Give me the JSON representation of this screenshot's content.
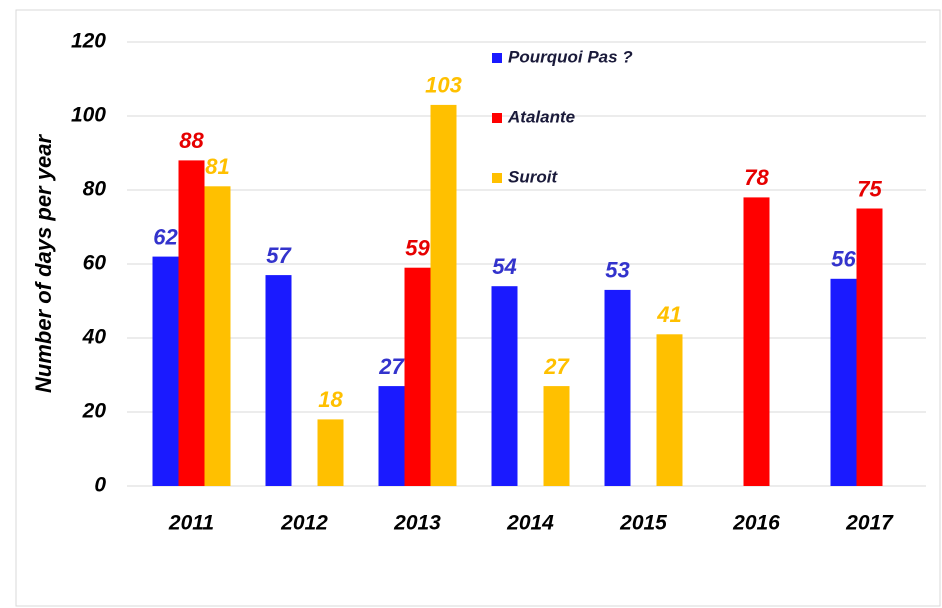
{
  "chart_data": {
    "type": "bar",
    "y_label": "Number of days per year",
    "categories": [
      "2011",
      "2012",
      "2013",
      "2014",
      "2015",
      "2016",
      "2017"
    ],
    "series": [
      {
        "name": "Pourquoi Pas ?",
        "color": "#1a1aff",
        "label_color": "#3333cc",
        "values": [
          62,
          57,
          27,
          54,
          53,
          null,
          56
        ]
      },
      {
        "name": "Atalante",
        "color": "#ff0000",
        "label_color": "#e60000",
        "values": [
          88,
          null,
          59,
          null,
          null,
          78,
          75
        ]
      },
      {
        "name": "Suroit",
        "color": "#ffc000",
        "label_color": "#ffc000",
        "values": [
          81,
          18,
          103,
          27,
          41,
          null,
          null
        ]
      }
    ],
    "ylim": [
      0,
      120
    ],
    "yticks": [
      0,
      20,
      40,
      60,
      80,
      100,
      120
    ],
    "grid": true
  }
}
